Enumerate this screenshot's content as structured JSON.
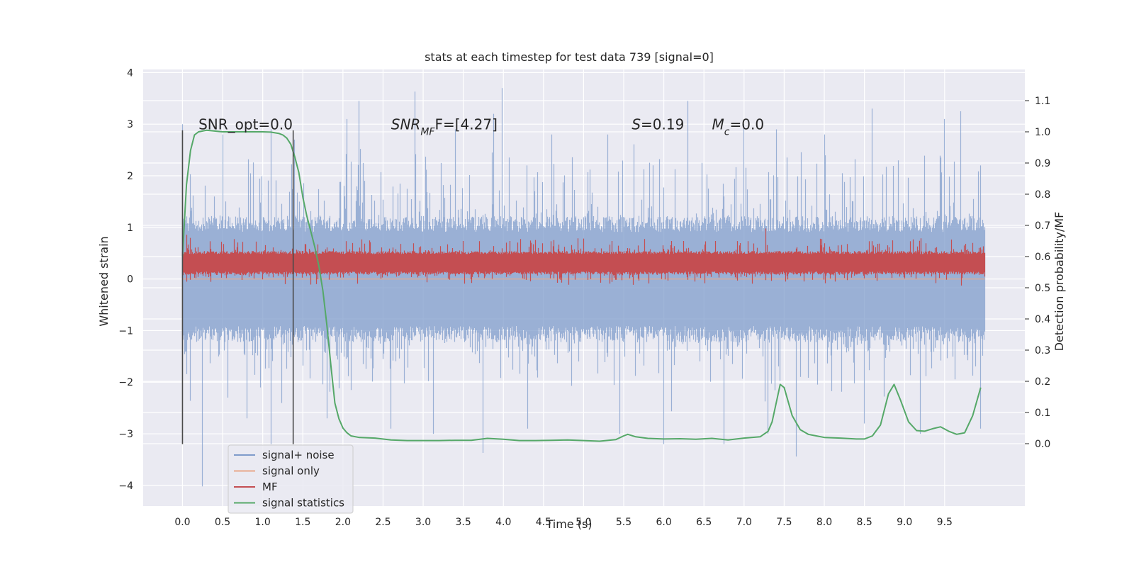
{
  "chart_data": {
    "type": "line",
    "title": "stats at each timestep for test data 739 [signal=0]",
    "xlabel": "Time (s)",
    "ylabel": "Whitened strain",
    "y2label": "Detection probability/MF",
    "xlim": [
      -0.49,
      10.5
    ],
    "ylim": [
      -4.4,
      4.06
    ],
    "y2lim": [
      -0.2,
      1.2
    ],
    "x_ticks": [
      0.0,
      0.5,
      1.0,
      1.5,
      2.0,
      2.5,
      3.0,
      3.5,
      4.0,
      4.5,
      5.0,
      5.5,
      6.0,
      6.5,
      7.0,
      7.5,
      8.0,
      8.5,
      9.0,
      9.5
    ],
    "x_tick_labels": [
      "0.0",
      "0.5",
      "1.0",
      "1.5",
      "2.0",
      "2.5",
      "3.0",
      "3.5",
      "4.0",
      "4.5",
      "5.0",
      "5.5",
      "6.0",
      "6.5",
      "7.0",
      "7.5",
      "8.0",
      "8.5",
      "9.0",
      "9.5"
    ],
    "y_ticks": [
      -4,
      -3,
      -2,
      -1,
      0,
      1,
      2,
      3,
      4
    ],
    "y_tick_labels": [
      "−4",
      "−3",
      "−2",
      "−1",
      "0",
      "1",
      "2",
      "3",
      "4"
    ],
    "y2_ticks": [
      0.0,
      0.1,
      0.2,
      0.3,
      0.4,
      0.5,
      0.6,
      0.7,
      0.8,
      0.9,
      1.0,
      1.1
    ],
    "y2_tick_labels": [
      "0.0",
      "0.1",
      "0.2",
      "0.3",
      "0.4",
      "0.5",
      "0.6",
      "0.7",
      "0.8",
      "0.9",
      "1.0",
      "1.1"
    ],
    "grid": true,
    "legend_position": "lower-left",
    "annotations": [
      {
        "text": "SNR_opt=0.0",
        "x": 0.2,
        "y": 2.9
      },
      {
        "main": "SNR",
        "sub": "MF",
        "rest": "F=[4.27]",
        "x": 2.6,
        "y": 2.9
      },
      {
        "main": "S",
        "rest": "=0.19",
        "x": 5.6,
        "y": 2.9
      },
      {
        "main": "M",
        "sub": "c",
        "rest": "=0.0",
        "x": 6.6,
        "y": 2.9
      }
    ],
    "vlines": [
      {
        "x": 0.0,
        "y": [
          -3.2,
          2.88
        ]
      },
      {
        "x": 1.38,
        "y": [
          -3.2,
          2.88
        ]
      }
    ],
    "series": [
      {
        "name": "signal+ noise",
        "color": "#7f9ccb",
        "axis": "left",
        "x_range": [
          0.0,
          10.0
        ],
        "typical_low": -1.3,
        "typical_high": 1.3,
        "peaks_high": [
          [
            0.0,
            3.0
          ],
          [
            0.5,
            2.8
          ],
          [
            1.1,
            2.9
          ],
          [
            1.4,
            2.7
          ],
          [
            2.05,
            3.1
          ],
          [
            2.2,
            3.45
          ],
          [
            2.9,
            3.63
          ],
          [
            3.4,
            2.9
          ],
          [
            3.88,
            3.2
          ],
          [
            3.98,
            3.7
          ],
          [
            4.6,
            2.8
          ],
          [
            5.3,
            2.8
          ],
          [
            6.3,
            3.45
          ],
          [
            7.0,
            3.0
          ],
          [
            7.4,
            2.9
          ],
          [
            8.0,
            2.8
          ],
          [
            8.6,
            3.3
          ],
          [
            9.5,
            3.1
          ],
          [
            9.7,
            3.25
          ],
          [
            9.95,
            2.2
          ]
        ],
        "peaks_low": [
          [
            0.25,
            -4.02
          ],
          [
            0.8,
            -2.7
          ],
          [
            1.1,
            -3.2
          ],
          [
            1.8,
            -2.7
          ],
          [
            2.6,
            -2.9
          ],
          [
            3.13,
            -3.0
          ],
          [
            3.75,
            -3.37
          ],
          [
            4.3,
            -2.9
          ],
          [
            5.45,
            -3.0
          ],
          [
            6.0,
            -3.2
          ],
          [
            6.75,
            -3.2
          ],
          [
            7.3,
            -3.0
          ],
          [
            7.65,
            -3.44
          ],
          [
            8.5,
            -2.8
          ],
          [
            9.2,
            -3.0
          ],
          [
            9.95,
            -2.9
          ]
        ]
      },
      {
        "name": "signal only",
        "color": "#e8a889",
        "axis": "left",
        "x": [
          0.0,
          10.0
        ],
        "y": [
          0.0,
          0.0
        ]
      },
      {
        "name": "MF",
        "color": "#c44e52",
        "axis": "right",
        "x_range": [
          0.0,
          10.0
        ],
        "typical_low": 0.54,
        "typical_high": 0.62,
        "peaks_high": [
          [
            0.05,
            0.67
          ],
          [
            0.1,
            0.66
          ],
          [
            3.5,
            0.65
          ],
          [
            5.35,
            0.65
          ],
          [
            6.25,
            0.65
          ],
          [
            7.27,
            0.69
          ],
          [
            9.4,
            0.63
          ]
        ]
      },
      {
        "name": "signal statistics",
        "color": "#55a868",
        "axis": "right",
        "x": [
          0.0,
          0.05,
          0.1,
          0.15,
          0.2,
          0.3,
          0.5,
          1.0,
          1.1,
          1.2,
          1.25,
          1.3,
          1.35,
          1.4,
          1.45,
          1.5,
          1.55,
          1.6,
          1.65,
          1.7,
          1.75,
          1.8,
          1.85,
          1.9,
          1.95,
          2.0,
          2.05,
          2.1,
          2.2,
          2.4,
          2.6,
          2.8,
          3.0,
          3.2,
          3.4,
          3.6,
          3.8,
          4.0,
          4.2,
          4.4,
          4.6,
          4.8,
          5.0,
          5.2,
          5.4,
          5.5,
          5.55,
          5.65,
          5.8,
          6.0,
          6.2,
          6.4,
          6.6,
          6.8,
          7.0,
          7.2,
          7.3,
          7.35,
          7.45,
          7.5,
          7.6,
          7.7,
          7.8,
          8.0,
          8.2,
          8.4,
          8.5,
          8.6,
          8.7,
          8.8,
          8.87,
          8.95,
          9.05,
          9.15,
          9.25,
          9.35,
          9.45,
          9.55,
          9.65,
          9.75,
          9.85,
          9.95
        ],
        "y": [
          0.6,
          0.83,
          0.94,
          0.99,
          1.0,
          1.005,
          1.0,
          1.0,
          0.999,
          0.995,
          0.99,
          0.98,
          0.96,
          0.92,
          0.87,
          0.79,
          0.73,
          0.68,
          0.63,
          0.57,
          0.49,
          0.38,
          0.25,
          0.13,
          0.08,
          0.05,
          0.035,
          0.025,
          0.02,
          0.018,
          0.012,
          0.01,
          0.01,
          0.01,
          0.011,
          0.011,
          0.017,
          0.014,
          0.01,
          0.01,
          0.011,
          0.012,
          0.01,
          0.008,
          0.013,
          0.025,
          0.03,
          0.022,
          0.017,
          0.015,
          0.016,
          0.014,
          0.017,
          0.012,
          0.018,
          0.022,
          0.04,
          0.07,
          0.19,
          0.18,
          0.09,
          0.045,
          0.03,
          0.02,
          0.018,
          0.015,
          0.015,
          0.025,
          0.06,
          0.16,
          0.19,
          0.14,
          0.07,
          0.042,
          0.04,
          0.048,
          0.054,
          0.04,
          0.03,
          0.035,
          0.09,
          0.18
        ]
      }
    ]
  }
}
